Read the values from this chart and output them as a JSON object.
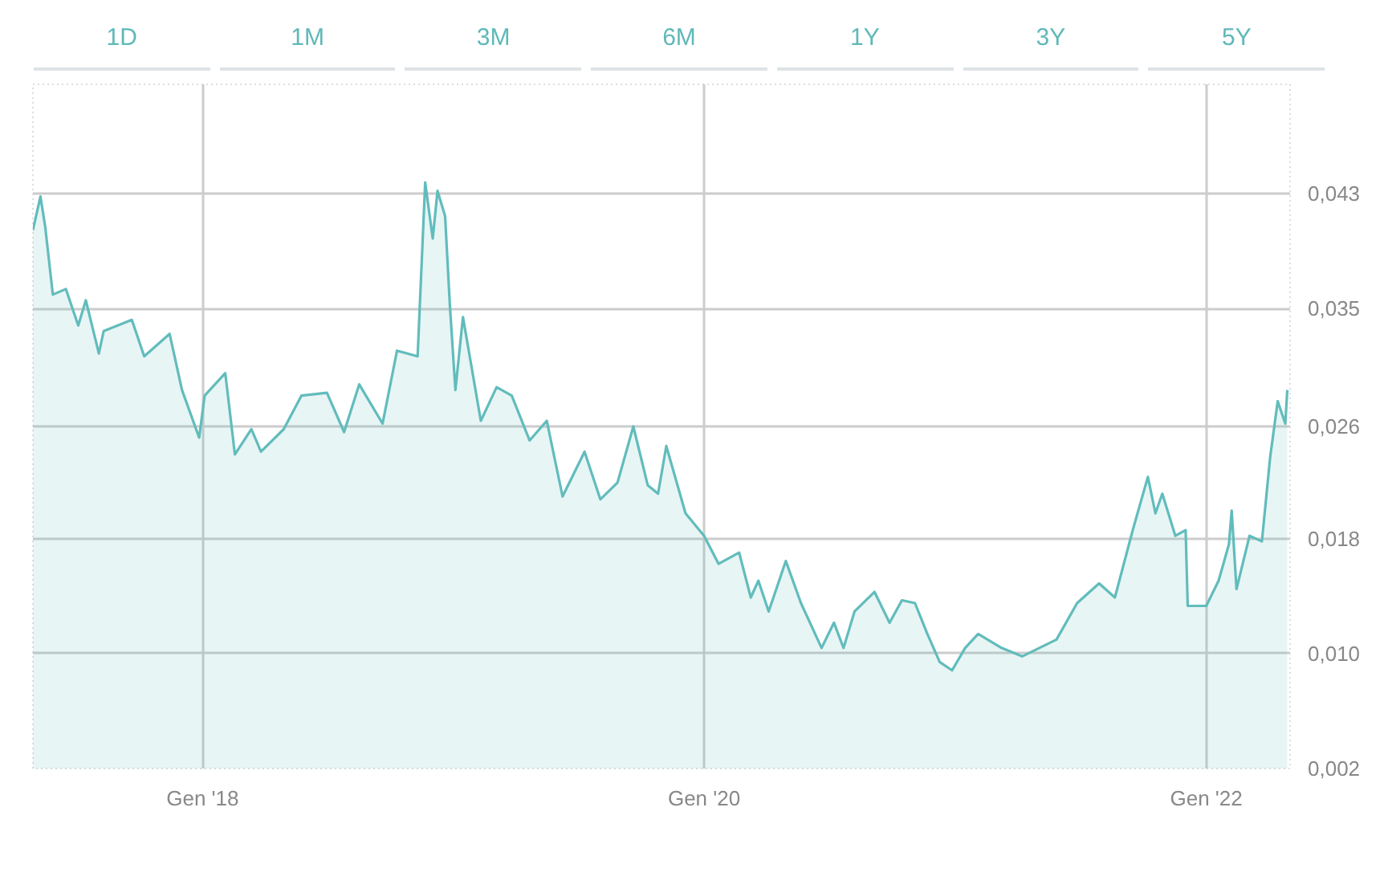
{
  "chart_data": {
    "type": "area",
    "x": [
      "2017-04-29",
      "2017-05-10",
      "2017-05-17",
      "2017-05-28",
      "2017-06-16",
      "2017-07-04",
      "2017-07-15",
      "2017-08-03",
      "2017-08-10",
      "2017-09-20",
      "2017-10-08",
      "2017-11-14",
      "2017-12-02",
      "2017-12-27",
      "2018-01-04",
      "2018-02-03",
      "2018-02-17",
      "2018-03-13",
      "2018-03-27",
      "2018-04-29",
      "2018-05-25",
      "2018-07-01",
      "2018-07-26",
      "2018-08-17",
      "2018-09-20",
      "2018-10-11",
      "2018-11-10",
      "2018-11-21",
      "2018-12-02",
      "2018-12-09",
      "2018-12-20",
      "2018-12-27",
      "2019-01-04",
      "2019-01-15",
      "2019-02-10",
      "2019-03-05",
      "2019-03-27",
      "2019-04-22",
      "2019-05-17",
      "2019-06-09",
      "2019-07-11",
      "2019-08-03",
      "2019-08-28",
      "2019-09-20",
      "2019-10-11",
      "2019-10-26",
      "2019-11-07",
      "2019-12-05",
      "2020-01-01",
      "2020-01-22",
      "2020-02-21",
      "2020-03-09",
      "2020-03-20",
      "2020-04-04",
      "2020-04-29",
      "2020-05-21",
      "2020-06-20",
      "2020-07-08",
      "2020-07-22",
      "2020-08-07",
      "2020-09-05",
      "2020-09-27",
      "2020-10-15",
      "2020-11-03",
      "2020-11-21",
      "2020-12-09",
      "2020-12-27",
      "2021-01-15",
      "2021-02-03",
      "2021-03-09",
      "2021-04-08",
      "2021-05-28",
      "2021-06-27",
      "2021-07-29",
      "2021-08-21",
      "2021-09-16",
      "2021-10-08",
      "2021-10-19",
      "2021-10-29",
      "2021-11-17",
      "2021-12-02",
      "2021-12-05",
      "2022-01-01",
      "2022-01-19",
      "2022-02-03",
      "2022-02-07",
      "2022-02-14",
      "2022-03-05",
      "2022-03-23",
      "2022-04-04",
      "2022-04-15",
      "2022-04-26",
      "2022-04-29"
    ],
    "series": [
      {
        "color": "#62bcbc",
        "values": [
          0.0404,
          0.0428,
          0.0406,
          0.0358,
          0.0362,
          0.0336,
          0.0354,
          0.0316,
          0.0332,
          0.034,
          0.0314,
          0.033,
          0.029,
          0.0256,
          0.0286,
          0.0302,
          0.0244,
          0.0262,
          0.0246,
          0.0262,
          0.0286,
          0.0288,
          0.026,
          0.0294,
          0.0266,
          0.0318,
          0.0314,
          0.0438,
          0.0398,
          0.0432,
          0.0414,
          0.035,
          0.029,
          0.0342,
          0.0268,
          0.0292,
          0.0286,
          0.0254,
          0.0268,
          0.0214,
          0.0246,
          0.0212,
          0.0224,
          0.0264,
          0.0222,
          0.0216,
          0.025,
          0.0202,
          0.0186,
          0.0166,
          0.0174,
          0.0142,
          0.0154,
          0.0132,
          0.0168,
          0.0138,
          0.0106,
          0.0124,
          0.0106,
          0.0132,
          0.0146,
          0.0124,
          0.014,
          0.0138,
          0.0116,
          0.0096,
          0.009,
          0.0106,
          0.0116,
          0.0106,
          0.01,
          0.0112,
          0.0138,
          0.0152,
          0.0142,
          0.019,
          0.0228,
          0.0202,
          0.0216,
          0.0186,
          0.019,
          0.0136,
          0.0136,
          0.0154,
          0.018,
          0.0204,
          0.0148,
          0.0186,
          0.0182,
          0.0242,
          0.0282,
          0.0266,
          0.029
        ]
      }
    ],
    "xlim": [
      "2017-04-29",
      "2022-05-03"
    ],
    "xticks": [
      {
        "value": "2018-01-01",
        "label": "Gen '18"
      },
      {
        "value": "2020-01-01",
        "label": "Gen '20"
      },
      {
        "value": "2022-01-01",
        "label": "Gen '22"
      }
    ],
    "ylim": [
      0.002,
      0.0508
    ],
    "yticks": [
      {
        "value": 0.002,
        "label": "0,002"
      },
      {
        "value": 0.0102,
        "label": "0,010"
      },
      {
        "value": 0.0184,
        "label": "0,018"
      },
      {
        "value": 0.0264,
        "label": "0,026"
      },
      {
        "value": 0.0348,
        "label": "0,035"
      },
      {
        "value": 0.043,
        "label": "0,043"
      }
    ],
    "grid": true,
    "annotations": [
      "1D",
      "1M",
      "3M",
      "6M",
      "1Y",
      "3Y",
      "5Y"
    ]
  }
}
